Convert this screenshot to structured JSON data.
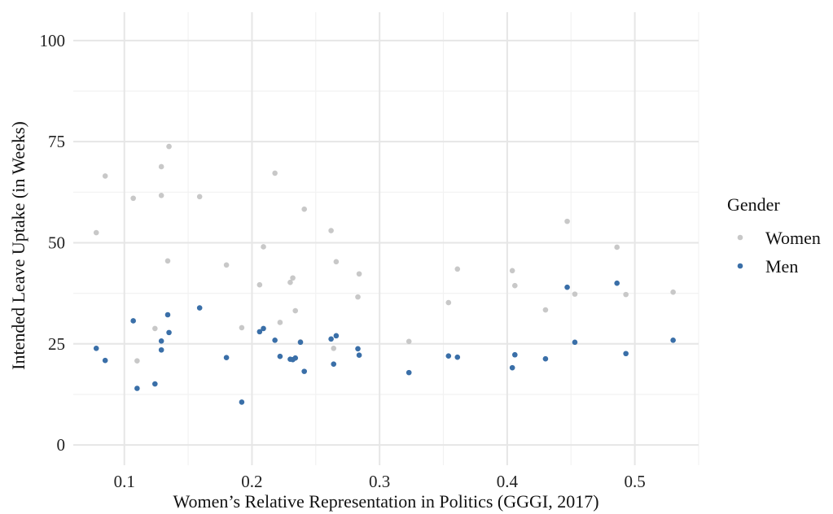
{
  "chart_data": {
    "type": "scatter",
    "title": "",
    "xlabel": "Women’s Relative Representation in Politics (GGGI, 2017)",
    "ylabel": "Intended Leave Uptake (in Weeks)",
    "xlim": [
      0.06,
      0.55
    ],
    "ylim": [
      -5,
      107
    ],
    "x_ticks": [
      0.1,
      0.2,
      0.3,
      0.4,
      0.5
    ],
    "x_tick_labels": [
      "0.1",
      "0.2",
      "0.3",
      "0.4",
      "0.5"
    ],
    "y_ticks": [
      0,
      25,
      50,
      75,
      100
    ],
    "y_tick_labels": [
      "0",
      "25",
      "50",
      "75",
      "100"
    ],
    "grid": true,
    "legend": {
      "title": "Gender",
      "position": "right"
    },
    "series": [
      {
        "name": "Women",
        "color": "#c8c8c8",
        "points": [
          [
            0.078,
            52.5
          ],
          [
            0.085,
            66.5
          ],
          [
            0.107,
            61.0
          ],
          [
            0.11,
            20.8
          ],
          [
            0.124,
            28.8
          ],
          [
            0.129,
            68.8
          ],
          [
            0.129,
            61.7
          ],
          [
            0.134,
            45.5
          ],
          [
            0.135,
            73.8
          ],
          [
            0.159,
            61.4
          ],
          [
            0.18,
            44.5
          ],
          [
            0.192,
            29.0
          ],
          [
            0.206,
            39.6
          ],
          [
            0.209,
            49.0
          ],
          [
            0.218,
            67.2
          ],
          [
            0.222,
            30.3
          ],
          [
            0.23,
            40.2
          ],
          [
            0.232,
            41.3
          ],
          [
            0.234,
            33.2
          ],
          [
            0.238,
            25.5
          ],
          [
            0.241,
            58.3
          ],
          [
            0.262,
            53.0
          ],
          [
            0.264,
            23.9
          ],
          [
            0.266,
            45.3
          ],
          [
            0.283,
            36.6
          ],
          [
            0.284,
            42.3
          ],
          [
            0.323,
            25.6
          ],
          [
            0.354,
            35.2
          ],
          [
            0.361,
            43.5
          ],
          [
            0.404,
            43.1
          ],
          [
            0.406,
            39.4
          ],
          [
            0.43,
            33.4
          ],
          [
            0.447,
            55.3
          ],
          [
            0.453,
            37.3
          ],
          [
            0.486,
            48.9
          ],
          [
            0.493,
            37.2
          ],
          [
            0.53,
            37.8
          ]
        ]
      },
      {
        "name": "Men",
        "color": "#3a6fa8",
        "points": [
          [
            0.078,
            23.9
          ],
          [
            0.085,
            20.9
          ],
          [
            0.107,
            30.7
          ],
          [
            0.11,
            14.0
          ],
          [
            0.124,
            15.1
          ],
          [
            0.129,
            25.7
          ],
          [
            0.129,
            23.5
          ],
          [
            0.134,
            32.2
          ],
          [
            0.135,
            27.8
          ],
          [
            0.159,
            33.9
          ],
          [
            0.18,
            21.6
          ],
          [
            0.192,
            10.6
          ],
          [
            0.206,
            28.0
          ],
          [
            0.209,
            28.8
          ],
          [
            0.218,
            25.9
          ],
          [
            0.222,
            21.9
          ],
          [
            0.23,
            21.2
          ],
          [
            0.232,
            21.1
          ],
          [
            0.234,
            21.5
          ],
          [
            0.238,
            25.4
          ],
          [
            0.241,
            18.2
          ],
          [
            0.262,
            26.2
          ],
          [
            0.264,
            20.0
          ],
          [
            0.266,
            27.0
          ],
          [
            0.283,
            23.8
          ],
          [
            0.284,
            22.2
          ],
          [
            0.323,
            17.9
          ],
          [
            0.354,
            22.0
          ],
          [
            0.361,
            21.7
          ],
          [
            0.404,
            19.1
          ],
          [
            0.406,
            22.3
          ],
          [
            0.43,
            21.3
          ],
          [
            0.447,
            39.0
          ],
          [
            0.453,
            25.4
          ],
          [
            0.486,
            40.0
          ],
          [
            0.493,
            22.6
          ],
          [
            0.53,
            25.9
          ]
        ]
      }
    ]
  }
}
